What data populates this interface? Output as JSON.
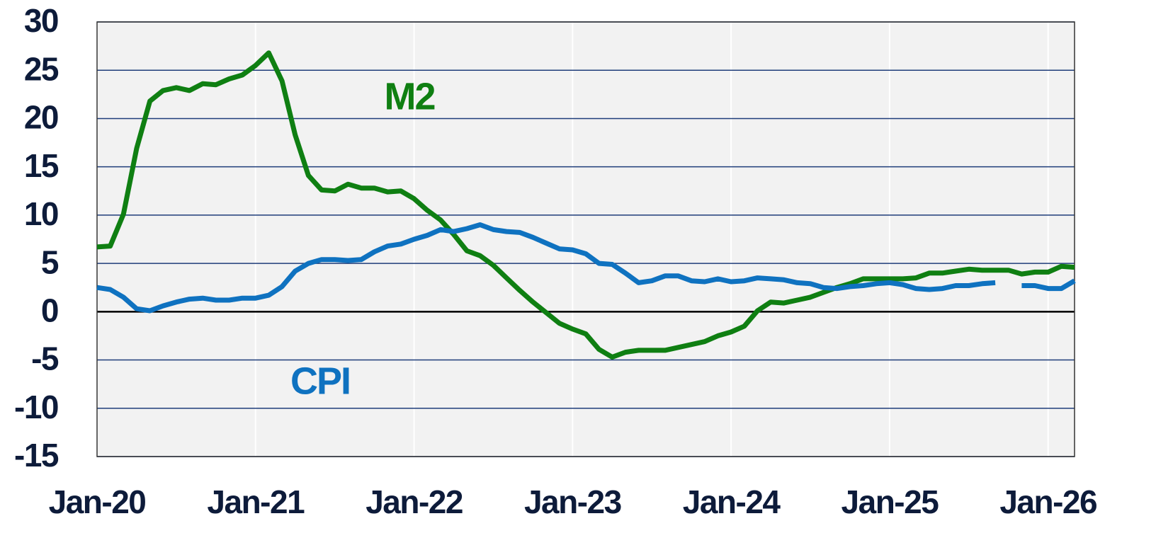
{
  "chart_data": {
    "type": "line",
    "x": [
      "2020-01",
      "2020-02",
      "2020-03",
      "2020-04",
      "2020-05",
      "2020-06",
      "2020-07",
      "2020-08",
      "2020-09",
      "2020-10",
      "2020-11",
      "2020-12",
      "2021-01",
      "2021-02",
      "2021-03",
      "2021-04",
      "2021-05",
      "2021-06",
      "2021-07",
      "2021-08",
      "2021-09",
      "2021-10",
      "2021-11",
      "2021-12",
      "2022-01",
      "2022-02",
      "2022-03",
      "2022-04",
      "2022-05",
      "2022-06",
      "2022-07",
      "2022-08",
      "2022-09",
      "2022-10",
      "2022-11",
      "2022-12",
      "2023-01",
      "2023-02",
      "2023-03",
      "2023-04",
      "2023-05",
      "2023-06",
      "2023-07",
      "2023-08",
      "2023-09",
      "2023-10",
      "2023-11",
      "2023-12",
      "2024-01",
      "2024-02",
      "2024-03",
      "2024-04",
      "2024-05",
      "2024-06",
      "2024-07",
      "2024-08",
      "2024-09",
      "2024-10",
      "2024-11",
      "2024-12",
      "2025-01",
      "2025-02",
      "2025-03",
      "2025-04",
      "2025-05",
      "2025-06",
      "2025-07",
      "2025-08",
      "2025-09",
      "2025-10",
      "2025-11",
      "2025-12",
      "2026-01",
      "2026-02",
      "2026-03"
    ],
    "series": [
      {
        "name": "M2",
        "color": "#0f7f12",
        "values": [
          6.7,
          6.8,
          10.1,
          16.9,
          21.8,
          22.9,
          23.2,
          22.9,
          23.6,
          23.5,
          24.1,
          24.5,
          25.5,
          26.8,
          23.9,
          18.3,
          14.1,
          12.6,
          12.5,
          13.2,
          12.8,
          12.8,
          12.4,
          12.5,
          11.7,
          10.5,
          9.5,
          8.0,
          6.3,
          5.8,
          4.8,
          3.5,
          2.2,
          1.0,
          -0.1,
          -1.2,
          -1.8,
          -2.3,
          -3.9,
          -4.7,
          -4.2,
          -4.0,
          -4.0,
          -4.0,
          -3.7,
          -3.4,
          -3.1,
          -2.5,
          -2.1,
          -1.5,
          0.1,
          1.0,
          0.9,
          1.2,
          1.5,
          2.0,
          2.5,
          2.9,
          3.4,
          3.4,
          3.4,
          3.4,
          3.5,
          4.0,
          4.0,
          4.2,
          4.4,
          4.3,
          4.3,
          4.3,
          3.9,
          4.1,
          4.1,
          4.7,
          4.6
        ]
      },
      {
        "name": "CPI",
        "color": "#0f72c0",
        "values": [
          2.5,
          2.3,
          1.5,
          0.3,
          0.1,
          0.6,
          1.0,
          1.3,
          1.4,
          1.2,
          1.2,
          1.4,
          1.4,
          1.7,
          2.6,
          4.2,
          5.0,
          5.4,
          5.4,
          5.3,
          5.4,
          6.2,
          6.8,
          7.0,
          7.5,
          7.9,
          8.5,
          8.3,
          8.6,
          9.0,
          8.5,
          8.3,
          8.2,
          7.7,
          7.1,
          6.5,
          6.4,
          6.0,
          5.0,
          4.9,
          4.0,
          3.0,
          3.2,
          3.7,
          3.7,
          3.2,
          3.1,
          3.4,
          3.1,
          3.2,
          3.5,
          3.4,
          3.3,
          3.0,
          2.9,
          2.5,
          2.4,
          2.6,
          2.7,
          2.9,
          3.0,
          2.8,
          2.4,
          2.3,
          2.4,
          2.7,
          2.7,
          2.9,
          3.0,
          null,
          2.7,
          2.7,
          2.4,
          2.4,
          3.2
        ]
      }
    ],
    "xlim": [
      "2020-01",
      "2026-03"
    ],
    "xticks": [
      {
        "value": "2020-01",
        "label": "Jan-20"
      },
      {
        "value": "2021-01",
        "label": "Jan-21"
      },
      {
        "value": "2022-01",
        "label": "Jan-22"
      },
      {
        "value": "2023-01",
        "label": "Jan-23"
      },
      {
        "value": "2024-01",
        "label": "Jan-24"
      },
      {
        "value": "2025-01",
        "label": "Jan-25"
      },
      {
        "value": "2026-01",
        "label": "Jan-26"
      }
    ],
    "ylim": [
      -15,
      30
    ],
    "yticks": [
      -15,
      -10,
      -5,
      0,
      5,
      10,
      15,
      20,
      25,
      30
    ],
    "grid": true
  }
}
